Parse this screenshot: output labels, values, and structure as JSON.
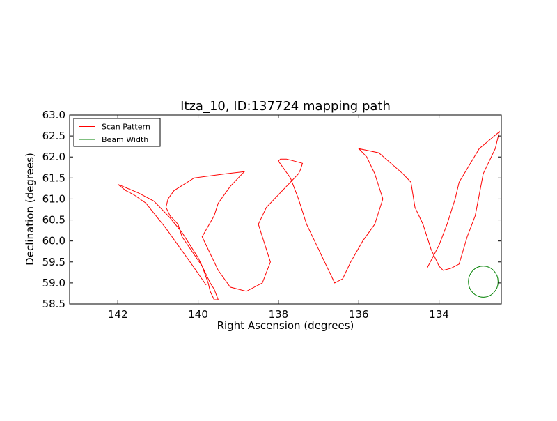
{
  "chart_data": {
    "type": "line",
    "title": "Itza_10, ID:137724 mapping path",
    "xlabel": "Right Ascension (degrees)",
    "ylabel": "Declination (degrees)",
    "xlim": [
      143.2,
      132.45
    ],
    "ylim": [
      58.5,
      63.0
    ],
    "x_inverted": true,
    "x_ticks": [
      142,
      140,
      138,
      136,
      134
    ],
    "x_tick_labels": [
      "142",
      "140",
      "138",
      "136",
      "134"
    ],
    "y_ticks": [
      58.5,
      59.0,
      59.5,
      60.0,
      60.5,
      61.0,
      61.5,
      62.0,
      62.5,
      63.0
    ],
    "y_tick_labels": [
      "58.5",
      "59.0",
      "59.5",
      "60.0",
      "60.5",
      "61.0",
      "61.5",
      "62.0",
      "62.5",
      "63.0"
    ],
    "grid": false,
    "legend_position": "top-left",
    "series": [
      {
        "name": "Scan Pattern",
        "color": "#ff0000",
        "x": [
          139.8,
          140.2,
          140.8,
          141.3,
          141.6,
          141.8,
          142.0,
          141.5,
          141.3,
          141.1,
          140.9,
          140.7,
          140.4,
          140.0,
          139.7,
          139.6,
          139.5,
          139.6,
          139.7,
          139.75,
          139.9,
          140.4,
          140.5,
          140.7,
          140.8,
          140.75,
          140.6,
          140.1,
          139.3,
          138.85,
          138.9,
          139.0,
          139.2,
          139.5,
          139.6,
          139.9,
          139.5,
          139.2,
          139.0,
          138.8,
          138.4,
          138.2,
          138.3,
          138.4,
          138.5,
          138.3,
          137.5,
          137.45,
          137.4,
          137.6,
          137.8,
          137.95,
          138.0,
          137.7,
          137.5,
          137.3,
          137.0,
          136.8,
          136.6,
          136.5,
          136.4,
          136.2,
          135.9,
          135.6,
          135.5,
          135.4,
          135.5,
          135.6,
          135.8,
          135.9,
          136.0,
          135.5,
          134.9,
          134.7,
          134.6,
          134.4,
          134.2,
          134.0,
          133.9,
          133.7,
          133.5,
          133.3,
          133.1,
          133.0,
          132.9,
          132.6,
          132.5,
          133.0,
          133.5,
          133.6,
          133.7,
          133.8,
          134.0,
          134.3
        ],
        "y": [
          58.95,
          59.5,
          60.3,
          60.9,
          61.1,
          61.2,
          61.35,
          61.15,
          61.05,
          60.95,
          60.75,
          60.55,
          60.2,
          59.6,
          59.0,
          58.85,
          58.6,
          58.6,
          58.8,
          59.0,
          59.4,
          60.1,
          60.4,
          60.6,
          60.8,
          61.0,
          61.2,
          61.5,
          61.6,
          61.65,
          61.6,
          61.5,
          61.3,
          60.9,
          60.6,
          60.1,
          59.3,
          58.9,
          58.85,
          58.8,
          59.0,
          59.5,
          59.8,
          60.1,
          60.4,
          60.8,
          61.6,
          61.7,
          61.85,
          61.9,
          61.95,
          61.95,
          61.9,
          61.5,
          61.0,
          60.4,
          59.8,
          59.4,
          59.0,
          59.05,
          59.1,
          59.5,
          60.0,
          60.4,
          60.7,
          61.0,
          61.3,
          61.6,
          62.0,
          62.1,
          62.2,
          62.1,
          61.6,
          61.4,
          60.8,
          60.4,
          59.8,
          59.4,
          59.3,
          59.35,
          59.45,
          60.1,
          60.6,
          61.1,
          61.6,
          62.2,
          62.6,
          62.2,
          61.4,
          61.0,
          60.7,
          60.4,
          59.9,
          59.35
        ]
      },
      {
        "name": "Beam Width",
        "color": "#008000",
        "shape": "circle",
        "center": [
          132.9,
          59.03
        ],
        "radius": 0.37
      }
    ]
  }
}
